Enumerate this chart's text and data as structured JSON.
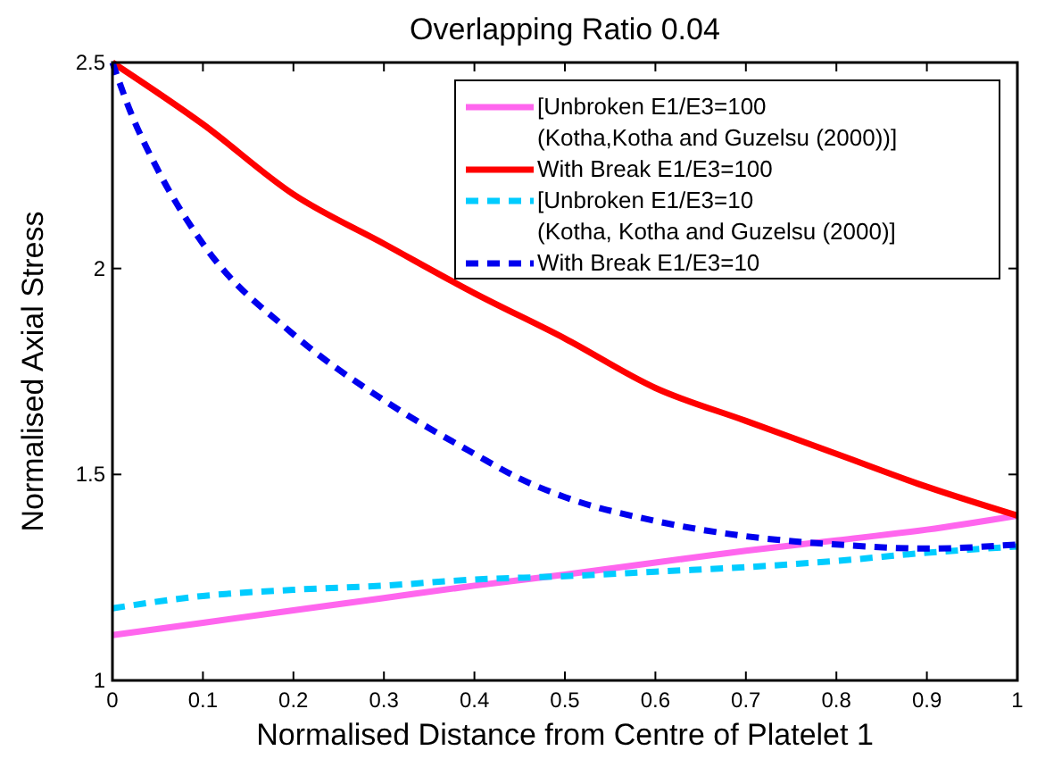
{
  "chart_data": {
    "type": "line",
    "title": "Overlapping Ratio 0.04",
    "xlabel": "Normalised Distance from Centre of Platelet 1",
    "ylabel": "Normalised Axial Stress",
    "x": [
      0,
      0.1,
      0.2,
      0.3,
      0.4,
      0.5,
      0.6,
      0.7,
      0.8,
      0.9,
      1
    ],
    "series": [
      {
        "name": "[Unbroken E1/E3=100\n(Kotha,Kotha and Guzelsu (2000))]",
        "color": "#ff66ee",
        "line_style": "solid",
        "values": [
          1.11,
          1.14,
          1.17,
          1.2,
          1.23,
          1.257,
          1.286,
          1.315,
          1.34,
          1.366,
          1.4
        ]
      },
      {
        "name": "With Break E1/E3=100",
        "color": "#ff0000",
        "line_style": "solid",
        "values": [
          2.5,
          2.35,
          2.18,
          2.06,
          1.94,
          1.83,
          1.71,
          1.63,
          1.55,
          1.47,
          1.4
        ]
      },
      {
        "name": "[Unbroken E1/E3=10\n(Kotha, Kotha and Guzelsu (2000)]",
        "color": "#00ccff",
        "line_style": "dashed",
        "values": [
          1.175,
          1.205,
          1.22,
          1.23,
          1.245,
          1.253,
          1.264,
          1.275,
          1.29,
          1.31,
          1.325
        ]
      },
      {
        "name": "With Break E1/E3=10",
        "color": "#0000ee",
        "line_style": "dashed",
        "x": [
          0,
          0.02,
          0.05,
          0.1,
          0.2,
          0.3,
          0.4,
          0.45,
          0.5,
          0.6,
          0.7,
          0.8,
          0.9,
          1
        ],
        "values": [
          2.5,
          2.38,
          2.24,
          2.06,
          1.84,
          1.68,
          1.55,
          1.49,
          1.445,
          1.387,
          1.35,
          1.33,
          1.32,
          1.33
        ]
      }
    ],
    "xlim": [
      0,
      1
    ],
    "ylim": [
      1,
      2.5
    ],
    "xticks": [
      0,
      0.1,
      0.2,
      0.3,
      0.4,
      0.5,
      0.6,
      0.7,
      0.8,
      0.9,
      1
    ],
    "yticks": [
      1,
      1.5,
      2,
      2.5
    ],
    "legend": "top right",
    "grid": false
  }
}
